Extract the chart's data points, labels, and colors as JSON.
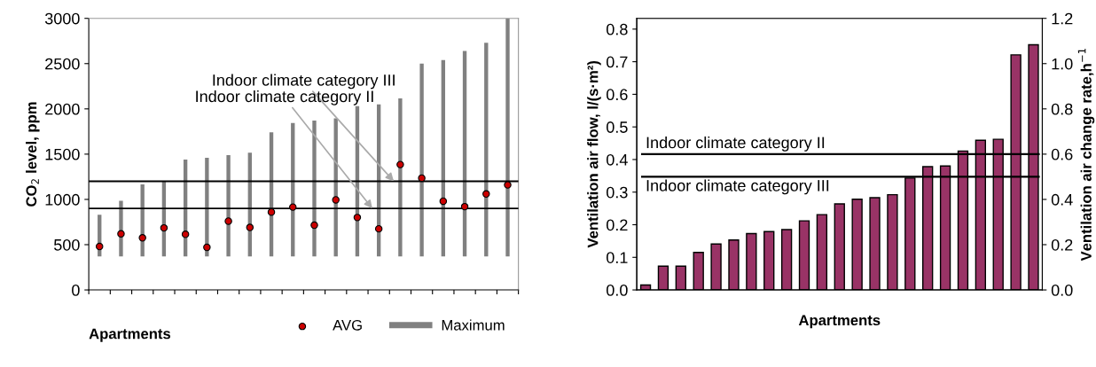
{
  "chart_data": [
    {
      "type": "bar",
      "xlabel": "Apartments",
      "ylabel": "CO$_{2}$ level, ppm",
      "categories": [
        null,
        null,
        null,
        null,
        null,
        null,
        null,
        null,
        null,
        null,
        null,
        null,
        null,
        null,
        null,
        null,
        null,
        null,
        null,
        null
      ],
      "series": [
        {
          "name": "AVG",
          "type": "scatter",
          "color": "#cc0000",
          "marker": "circle",
          "values": [
            480,
            620,
            575,
            685,
            615,
            470,
            760,
            690,
            860,
            915,
            715,
            995,
            800,
            675,
            1385,
            1235,
            980,
            920,
            1060,
            1160
          ]
        },
        {
          "name": "Maximum",
          "type": "bar",
          "color": "#808080",
          "base": [
            370,
            370,
            370,
            370,
            370,
            370,
            370,
            370,
            370,
            370,
            370,
            370,
            370,
            370,
            370,
            370,
            370,
            370,
            370,
            370
          ],
          "values": [
            460,
            615,
            795,
            830,
            1070,
            1090,
            1120,
            1145,
            1370,
            1475,
            1500,
            1525,
            1660,
            1680,
            1745,
            2130,
            2170,
            2270,
            2360,
            2630
          ]
        }
      ],
      "ylim": [
        0,
        3000
      ],
      "yticks": [
        0,
        500,
        1000,
        1500,
        2000,
        2500,
        3000
      ],
      "ref_lines": [
        {
          "axis": "y",
          "value": 1200,
          "label": "Indoor climate category III",
          "color": "#000000"
        },
        {
          "axis": "y",
          "value": 900,
          "label": "Indoor climate category II",
          "color": "#000000"
        }
      ],
      "legend": "bottom"
    },
    {
      "type": "bar",
      "xlabel": "Apartments",
      "ylabel": "Ventilation air flow, l/(s·m²)",
      "y2label": "Ventilation air change rate,h$^{−1}$",
      "categories": [
        null,
        null,
        null,
        null,
        null,
        null,
        null,
        null,
        null,
        null,
        null,
        null,
        null,
        null,
        null,
        null,
        null,
        null,
        null,
        null,
        null,
        null,
        null
      ],
      "series": [
        {
          "color": "#993366",
          "values": [
            0.015,
            0.073,
            0.073,
            0.115,
            0.141,
            0.153,
            0.173,
            0.179,
            0.185,
            0.212,
            0.231,
            0.264,
            0.278,
            0.283,
            0.292,
            0.343,
            0.378,
            0.38,
            0.426,
            0.459,
            0.462,
            0.721,
            0.752
          ]
        }
      ],
      "ylim": [
        0,
        0.833
      ],
      "yticks": [
        {
          "value": 0,
          "label": "0.0"
        },
        0.1,
        0.2,
        0.3,
        0.4,
        0.5,
        0.6,
        0.7,
        0.8
      ],
      "y2lim": [
        0,
        1.2
      ],
      "y2ticks": [
        {
          "value": 0,
          "label": "0.0"
        },
        0.2,
        0.4,
        0.6,
        0.8,
        {
          "value": 1,
          "label": "1.0"
        },
        1.2
      ],
      "ref_lines": [
        {
          "axis": "y2",
          "value": 0.6,
          "label": "Indoor climate category II",
          "color": "#000000"
        },
        {
          "axis": "y2",
          "value": 0.5,
          "label": "Indoor climate category III",
          "color": "#000000"
        }
      ]
    }
  ]
}
